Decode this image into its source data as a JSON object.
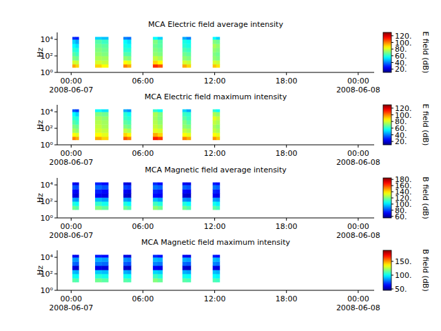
{
  "chart_data": [
    {
      "type": "heatmap",
      "title": "MCA  Electric field average intensity",
      "y_label": "Hz",
      "colorbar_label": "E field (dB)",
      "log": "y",
      "xlim": [
        "2008-06-06 22:50",
        "2008-06-08 01:20"
      ],
      "xticks": [
        {
          "value": "2008-06-07 00:00",
          "label": "00:00\n2008-06-07"
        },
        {
          "value": "2008-06-07 06:00",
          "label": "06:00"
        },
        {
          "value": "2008-06-07 12:00",
          "label": "12:00"
        },
        {
          "value": "2008-06-07 18:00",
          "label": "18:00"
        },
        {
          "value": "2008-06-08 00:00",
          "label": "00:00\n2008-06-08"
        }
      ],
      "ylim": [
        1,
        70000
      ],
      "yticks": [
        {
          "value": 1,
          "label": "10⁰"
        },
        {
          "value": 100,
          "label": "10²"
        },
        {
          "value": 10000,
          "label": "10⁴"
        }
      ],
      "zlim": [
        10,
        130
      ],
      "zticks": [
        {
          "value": 20,
          "label": "20."
        },
        {
          "value": 40,
          "label": "40."
        },
        {
          "value": 60,
          "label": "60."
        },
        {
          "value": 80,
          "label": "80."
        },
        {
          "value": 100,
          "label": "100."
        },
        {
          "value": 120,
          "label": "120."
        }
      ],
      "freq_bins": [
        4,
        10,
        30,
        100,
        300,
        1000,
        3000,
        10000,
        20000
      ],
      "segments": [
        {
          "start": "2008-06-07 00:06",
          "end": "2008-06-07 00:38",
          "cells": [
            [
              95,
              80,
              70,
              65,
              60,
              55,
              50,
              30
            ],
            [
              90,
              78,
              68,
              62,
              58,
              52,
              45,
              28
            ]
          ]
        },
        {
          "start": "2008-06-07 02:00",
          "end": "2008-06-07 03:06",
          "cells": [
            [
              90,
              80,
              75,
              72,
              70,
              68,
              65,
              50
            ],
            [
              85,
              78,
              74,
              70,
              68,
              66,
              62,
              48
            ]
          ]
        },
        {
          "start": "2008-06-07 04:22",
          "end": "2008-06-07 05:00",
          "cells": [
            [
              100,
              85,
              72,
              65,
              60,
              58,
              55,
              40
            ],
            [
              95,
              82,
              70,
              64,
              60,
              56,
              52,
              38
            ]
          ]
        },
        {
          "start": "2008-06-07 06:50",
          "end": "2008-06-07 07:38",
          "cells": [
            [
              110,
              90,
              78,
              72,
              70,
              68,
              70,
              55
            ],
            [
              105,
              85,
              75,
              70,
              68,
              66,
              65,
              50
            ]
          ]
        },
        {
          "start": "2008-06-07 09:18",
          "end": "2008-06-07 10:00",
          "cells": [
            [
              95,
              80,
              72,
              68,
              64,
              60,
              58,
              45
            ],
            [
              90,
              78,
              70,
              66,
              62,
              58,
              56,
              40
            ]
          ]
        },
        {
          "start": "2008-06-07 11:50",
          "end": "2008-06-07 12:25",
          "cells": [
            [
              92,
              80,
              72,
              70,
              72,
              75,
              70,
              55
            ],
            [
              88,
              78,
              70,
              68,
              70,
              72,
              68,
              50
            ]
          ]
        }
      ]
    },
    {
      "type": "heatmap",
      "title": "MCA  Electric field maximum intensity",
      "y_label": "Hz",
      "colorbar_label": "E field (dB)",
      "log": "y",
      "xlim": [
        "2008-06-06 22:50",
        "2008-06-08 01:20"
      ],
      "xticks": [
        {
          "value": "2008-06-07 00:00",
          "label": "00:00\n2008-06-07"
        },
        {
          "value": "2008-06-07 06:00",
          "label": "06:00"
        },
        {
          "value": "2008-06-07 12:00",
          "label": "12:00"
        },
        {
          "value": "2008-06-07 18:00",
          "label": "18:00"
        },
        {
          "value": "2008-06-08 00:00",
          "label": "00:00\n2008-06-08"
        }
      ],
      "ylim": [
        1,
        70000
      ],
      "yticks": [
        {
          "value": 1,
          "label": "10⁰"
        },
        {
          "value": 100,
          "label": "10²"
        },
        {
          "value": 10000,
          "label": "10⁴"
        }
      ],
      "zlim": [
        10,
        130
      ],
      "zticks": [
        {
          "value": 20,
          "label": "20."
        },
        {
          "value": 40,
          "label": "40."
        },
        {
          "value": 60,
          "label": "60."
        },
        {
          "value": 80,
          "label": "80."
        },
        {
          "value": 100,
          "label": "100."
        },
        {
          "value": 120,
          "label": "120."
        }
      ],
      "freq_bins": [
        4,
        10,
        30,
        100,
        300,
        1000,
        3000,
        10000,
        20000
      ],
      "segments": [
        {
          "start": "2008-06-07 00:06",
          "end": "2008-06-07 00:38",
          "cells": [
            [
              100,
              85,
              75,
              70,
              65,
              60,
              55,
              35
            ],
            [
              95,
              82,
              72,
              68,
              62,
              58,
              50,
              32
            ]
          ]
        },
        {
          "start": "2008-06-07 02:00",
          "end": "2008-06-07 03:06",
          "cells": [
            [
              95,
              85,
              80,
              78,
              76,
              74,
              70,
              55
            ],
            [
              90,
              82,
              78,
              75,
              74,
              72,
              68,
              52
            ]
          ]
        },
        {
          "start": "2008-06-07 04:22",
          "end": "2008-06-07 05:00",
          "cells": [
            [
              105,
              90,
              78,
              70,
              66,
              62,
              60,
              45
            ],
            [
              100,
              86,
              75,
              68,
              64,
              60,
              56,
              42
            ]
          ]
        },
        {
          "start": "2008-06-07 06:50",
          "end": "2008-06-07 07:38",
          "cells": [
            [
              112,
              95,
              82,
              78,
              76,
              74,
              75,
              60
            ],
            [
              108,
              90,
              80,
              75,
              72,
              70,
              70,
              55
            ]
          ]
        },
        {
          "start": "2008-06-07 09:18",
          "end": "2008-06-07 10:00",
          "cells": [
            [
              100,
              85,
              78,
              72,
              70,
              66,
              62,
              50
            ],
            [
              95,
              82,
              75,
              70,
              66,
              62,
              60,
              45
            ]
          ]
        },
        {
          "start": "2008-06-07 11:50",
          "end": "2008-06-07 12:25",
          "cells": [
            [
              98,
              85,
              78,
              75,
              78,
              82,
              75,
              60
            ],
            [
              92,
              82,
              75,
              72,
              75,
              78,
              72,
              55
            ]
          ]
        }
      ]
    },
    {
      "type": "heatmap",
      "title": "MCA  Magnetic field average intensity",
      "y_label": "Hz",
      "colorbar_label": "B field (dB)",
      "log": "y",
      "xlim": [
        "2008-06-06 22:50",
        "2008-06-08 01:20"
      ],
      "xticks": [
        {
          "value": "2008-06-07 00:00",
          "label": "00:00\n2008-06-07"
        },
        {
          "value": "2008-06-07 06:00",
          "label": "06:00"
        },
        {
          "value": "2008-06-07 12:00",
          "label": "12:00"
        },
        {
          "value": "2008-06-07 18:00",
          "label": "18:00"
        },
        {
          "value": "2008-06-08 00:00",
          "label": "00:00\n2008-06-08"
        }
      ],
      "ylim": [
        1,
        70000
      ],
      "yticks": [
        {
          "value": 1,
          "label": "10⁰"
        },
        {
          "value": 100,
          "label": "10²"
        },
        {
          "value": 10000,
          "label": "10⁴"
        }
      ],
      "zlim": [
        55,
        185
      ],
      "zticks": [
        {
          "value": 60,
          "label": "60."
        },
        {
          "value": 80,
          "label": "80."
        },
        {
          "value": 100,
          "label": "100."
        },
        {
          "value": 120,
          "label": "120."
        },
        {
          "value": 140,
          "label": "140."
        },
        {
          "value": 160,
          "label": "160."
        },
        {
          "value": 180,
          "label": "180."
        }
      ],
      "freq_bins": [
        10,
        30,
        100,
        300,
        1000,
        3000,
        10000,
        20000
      ],
      "segments": [
        {
          "start": "2008-06-07 00:06",
          "end": "2008-06-07 00:38",
          "cells": [
            [
              118,
              108,
              92,
              68,
              72,
              82,
              70
            ],
            [
              115,
              105,
              90,
              66,
              70,
              80,
              68
            ]
          ]
        },
        {
          "start": "2008-06-07 02:00",
          "end": "2008-06-07 03:06",
          "cells": [
            [
              120,
              110,
              95,
              70,
              75,
              85,
              75
            ],
            [
              116,
              106,
              92,
              68,
              72,
              82,
              72
            ]
          ]
        },
        {
          "start": "2008-06-07 04:22",
          "end": "2008-06-07 05:00",
          "cells": [
            [
              118,
              108,
              92,
              66,
              70,
              80,
              68
            ],
            [
              114,
              104,
              90,
              64,
              68,
              78,
              66
            ]
          ]
        },
        {
          "start": "2008-06-07 06:50",
          "end": "2008-06-07 07:38",
          "cells": [
            [
              122,
              112,
              96,
              72,
              76,
              86,
              76
            ],
            [
              118,
              108,
              92,
              70,
              74,
              84,
              72
            ]
          ]
        },
        {
          "start": "2008-06-07 09:18",
          "end": "2008-06-07 10:00",
          "cells": [
            [
              118,
              108,
              90,
              66,
              72,
              84,
              70
            ],
            [
              114,
              104,
              88,
              64,
              70,
              82,
              68
            ]
          ]
        },
        {
          "start": "2008-06-07 11:50",
          "end": "2008-06-07 12:25",
          "cells": [
            [
              116,
              106,
              92,
              70,
              76,
              86,
              74
            ],
            [
              112,
              102,
              90,
              68,
              74,
              84,
              72
            ]
          ]
        }
      ]
    },
    {
      "type": "heatmap",
      "title": "MCA  Magnetic field maximum intensity",
      "y_label": "Hz",
      "colorbar_label": "B field (dB)",
      "log": "y",
      "xlim": [
        "2008-06-06 22:50",
        "2008-06-08 01:20"
      ],
      "xticks": [
        {
          "value": "2008-06-07 00:00",
          "label": "00:00\n2008-06-07"
        },
        {
          "value": "2008-06-07 06:00",
          "label": "06:00"
        },
        {
          "value": "2008-06-07 12:00",
          "label": "12:00"
        },
        {
          "value": "2008-06-07 18:00",
          "label": "18:00"
        },
        {
          "value": "2008-06-08 00:00",
          "label": "00:00\n2008-06-08"
        }
      ],
      "ylim": [
        1,
        70000
      ],
      "yticks": [
        {
          "value": 1,
          "label": "10⁰"
        },
        {
          "value": 100,
          "label": "10²"
        },
        {
          "value": 10000,
          "label": "10⁴"
        }
      ],
      "zlim": [
        45,
        190
      ],
      "zticks": [
        {
          "value": 50,
          "label": "50."
        },
        {
          "value": 100,
          "label": "100."
        },
        {
          "value": 150,
          "label": "150."
        }
      ],
      "freq_bins": [
        10,
        30,
        100,
        300,
        1000,
        3000,
        10000,
        20000
      ],
      "segments": [
        {
          "start": "2008-06-07 00:06",
          "end": "2008-06-07 00:38",
          "cells": [
            [
              112,
              102,
              90,
              58,
              78,
              85,
              62
            ],
            [
              110,
              100,
              88,
              56,
              76,
              84,
              60
            ]
          ]
        },
        {
          "start": "2008-06-07 02:00",
          "end": "2008-06-07 03:06",
          "cells": [
            [
              115,
              105,
              92,
              60,
              80,
              88,
              66
            ],
            [
              112,
              102,
              90,
              58,
              78,
              86,
              64
            ]
          ]
        },
        {
          "start": "2008-06-07 04:22",
          "end": "2008-06-07 05:00",
          "cells": [
            [
              112,
              102,
              88,
              56,
              76,
              84,
              60
            ],
            [
              110,
              100,
              86,
              55,
              74,
              82,
              58
            ]
          ]
        },
        {
          "start": "2008-06-07 06:50",
          "end": "2008-06-07 07:38",
          "cells": [
            [
              118,
              108,
              94,
              62,
              82,
              90,
              68
            ],
            [
              114,
              104,
              92,
              60,
              80,
              88,
              65
            ]
          ]
        },
        {
          "start": "2008-06-07 09:18",
          "end": "2008-06-07 10:00",
          "cells": [
            [
              112,
              102,
              88,
              57,
              78,
              88,
              62
            ],
            [
              110,
              100,
              86,
              55,
              76,
              86,
              60
            ]
          ]
        },
        {
          "start": "2008-06-07 11:50",
          "end": "2008-06-07 12:25",
          "cells": [
            [
              110,
              100,
              90,
              60,
              82,
              90,
              66
            ],
            [
              108,
              98,
              88,
              58,
              80,
              88,
              64
            ]
          ]
        }
      ]
    }
  ]
}
